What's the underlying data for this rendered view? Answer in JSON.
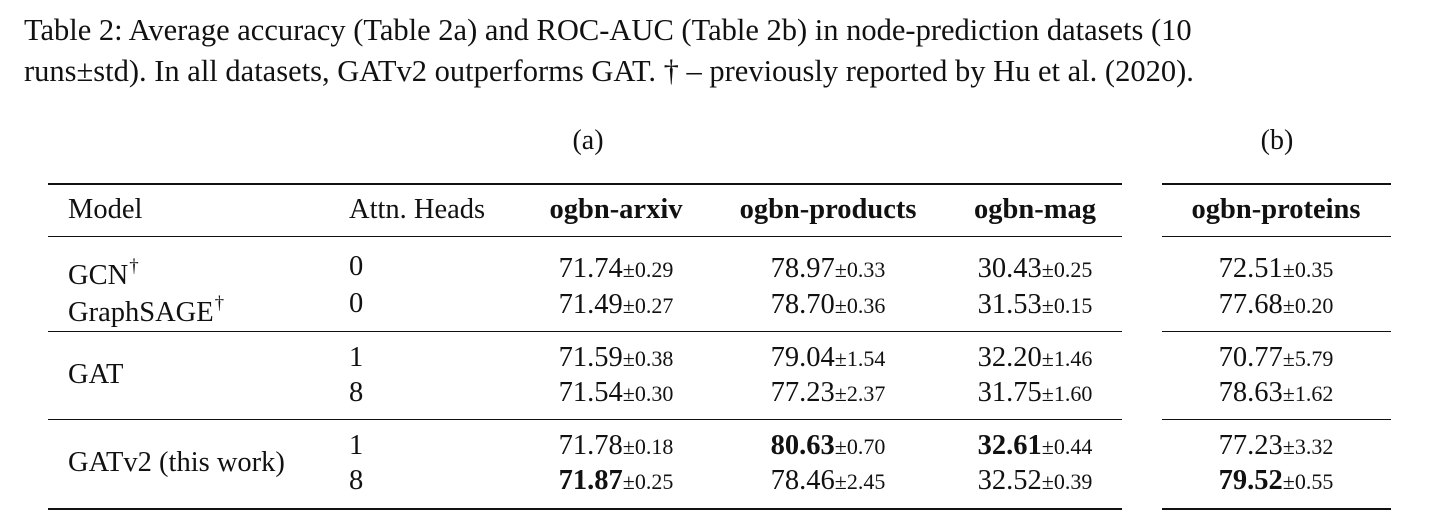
{
  "caption": {
    "line1": "Table 2:  Average accuracy (Table 2a) and ROC-AUC (Table 2b) in node-prediction datasets (10",
    "line2": "runs±std). In all datasets, GATv2 outperforms GAT. † – previously reported by Hu et al. (2020)."
  },
  "subtables": {
    "a_label": "(a)",
    "b_label": "(b)"
  },
  "table": {
    "headers": {
      "model": "Model",
      "heads": "Attn. Heads",
      "arxiv": "ogbn-arxiv",
      "products": "ogbn-products",
      "mag": "ogbn-mag",
      "proteins": "ogbn-proteins"
    },
    "rows": [
      {
        "model": "GCN",
        "dagger": "†",
        "heads": "0",
        "arxiv": {
          "mean": "71.74",
          "std": "±0.29"
        },
        "products": {
          "mean": "78.97",
          "std": "±0.33"
        },
        "mag": {
          "mean": "30.43",
          "std": "±0.25"
        },
        "proteins": {
          "mean": "72.51",
          "std": "±0.35"
        }
      },
      {
        "model": "GraphSAGE",
        "dagger": "†",
        "heads": "0",
        "arxiv": {
          "mean": "71.49",
          "std": "±0.27"
        },
        "products": {
          "mean": "78.70",
          "std": "±0.36"
        },
        "mag": {
          "mean": "31.53",
          "std": "±0.15"
        },
        "proteins": {
          "mean": "77.68",
          "std": "±0.20"
        }
      },
      {
        "model": "GAT",
        "heads": "1",
        "arxiv": {
          "mean": "71.59",
          "std": "±0.38"
        },
        "products": {
          "mean": "79.04",
          "std": "±1.54"
        },
        "mag": {
          "mean": "32.20",
          "std": "±1.46"
        },
        "proteins": {
          "mean": "70.77",
          "std": "±5.79"
        }
      },
      {
        "heads": "8",
        "arxiv": {
          "mean": "71.54",
          "std": "±0.30"
        },
        "products": {
          "mean": "77.23",
          "std": "±2.37"
        },
        "mag": {
          "mean": "31.75",
          "std": "±1.60"
        },
        "proteins": {
          "mean": "78.63",
          "std": "±1.62"
        }
      },
      {
        "model": "GATv2 (this work)",
        "heads": "1",
        "arxiv": {
          "mean": "71.78",
          "std": "±0.18"
        },
        "products": {
          "mean": "80.63",
          "std": "±0.70",
          "bold": true
        },
        "mag": {
          "mean": "32.61",
          "std": "±0.44",
          "bold": true
        },
        "proteins": {
          "mean": "77.23",
          "std": "±3.32"
        }
      },
      {
        "heads": "8",
        "arxiv": {
          "mean": "71.87",
          "std": "±0.25",
          "bold": true
        },
        "products": {
          "mean": "78.46",
          "std": "±2.45"
        },
        "mag": {
          "mean": "32.52",
          "std": "±0.39"
        },
        "proteins": {
          "mean": "79.52",
          "std": "±0.55",
          "bold": true
        }
      }
    ]
  }
}
